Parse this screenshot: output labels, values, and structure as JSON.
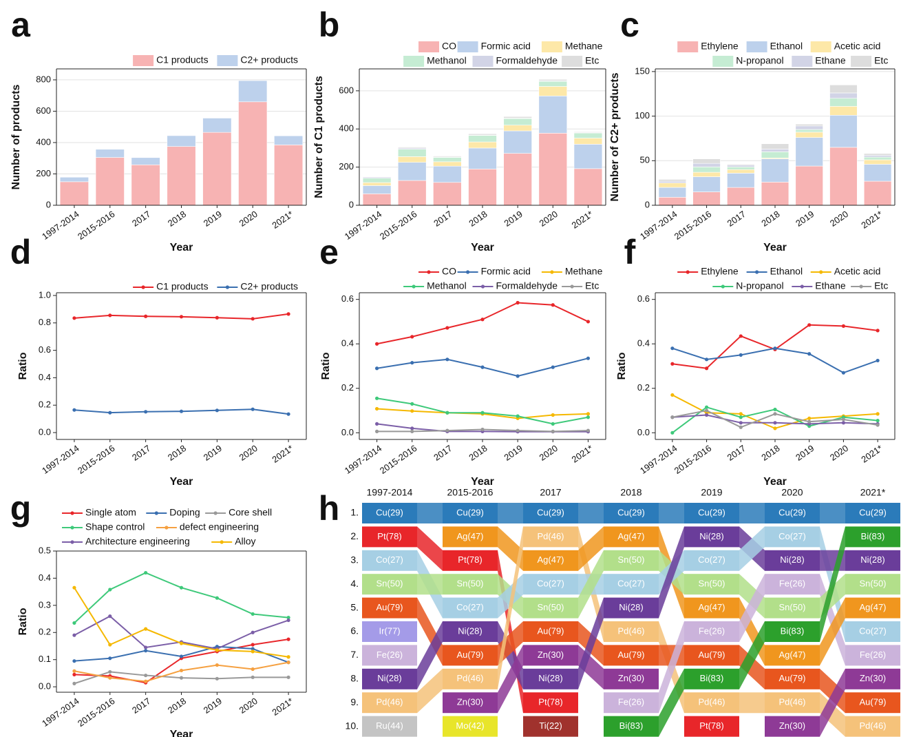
{
  "chart_data": [
    {
      "label": "a",
      "type": "bar",
      "stacked": true,
      "grid": true,
      "legend": "top-right",
      "xlabel": "Year",
      "ylabel": "Number of products",
      "categories": [
        "1997-2014",
        "2015-2016",
        "2017",
        "2018",
        "2019",
        "2020",
        "2021*"
      ],
      "ylim": [
        0,
        870
      ],
      "yticks": [
        0,
        200,
        400,
        600,
        800
      ],
      "series": [
        {
          "name": "C1 products",
          "color": "#f7b3b3",
          "values": [
            150,
            305,
            258,
            375,
            465,
            660,
            385
          ]
        },
        {
          "name": "C2+ products",
          "color": "#bdd1ec",
          "values": [
            29,
            52,
            46,
            69,
            91,
            135,
            58
          ]
        }
      ]
    },
    {
      "label": "b",
      "type": "bar",
      "stacked": true,
      "grid": true,
      "legend": "top-right",
      "xlabel": "Year",
      "ylabel": "Number of C1 products",
      "categories": [
        "1997-2014",
        "2015-2016",
        "2017",
        "2018",
        "2019",
        "2020",
        "2021*"
      ],
      "ylim": [
        0,
        715
      ],
      "yticks": [
        0,
        200,
        400,
        600
      ],
      "series": [
        {
          "name": "CO",
          "color": "#f7b3b3",
          "values": [
            60,
            130,
            120,
            190,
            272,
            378,
            192
          ]
        },
        {
          "name": "Formic acid",
          "color": "#bdd1ec",
          "values": [
            43,
            95,
            85,
            110,
            118,
            195,
            128
          ]
        },
        {
          "name": "Methane",
          "color": "#fde8a8",
          "values": [
            16,
            30,
            23,
            32,
            30,
            50,
            32
          ]
        },
        {
          "name": "Methanol",
          "color": "#c5ecd3",
          "values": [
            23,
            39,
            23,
            34,
            35,
            27,
            27
          ]
        },
        {
          "name": "Formaldehyde",
          "color": "#d2d4e6",
          "values": [
            6,
            6,
            2,
            2,
            2,
            3,
            2
          ]
        },
        {
          "name": "Etc",
          "color": "#dddddd",
          "values": [
            2,
            5,
            5,
            7,
            8,
            7,
            4
          ]
        }
      ]
    },
    {
      "label": "c",
      "type": "bar",
      "stacked": true,
      "grid": true,
      "legend": "top-right",
      "xlabel": "Year",
      "ylabel": "Number of C2+ products",
      "categories": [
        "1997-2014",
        "2015-2016",
        "2017",
        "2018",
        "2019",
        "2020",
        "2021*"
      ],
      "ylim": [
        0,
        153
      ],
      "yticks": [
        0,
        50,
        100,
        150
      ],
      "series": [
        {
          "name": "Ethylene",
          "color": "#f7b3b3",
          "values": [
            9,
            15,
            20,
            26,
            44,
            65,
            27
          ]
        },
        {
          "name": "Ethanol",
          "color": "#bdd1ec",
          "values": [
            11,
            17,
            16,
            26,
            32,
            36,
            19
          ]
        },
        {
          "name": "Acetic acid",
          "color": "#fde8a8",
          "values": [
            5,
            5,
            4,
            1,
            6,
            10,
            5
          ]
        },
        {
          "name": "N-propanol",
          "color": "#c5ecd3",
          "values": [
            0,
            6,
            3,
            7,
            3,
            9,
            3
          ]
        },
        {
          "name": "Ethane",
          "color": "#d2d4e6",
          "values": [
            2,
            4,
            2,
            3,
            4,
            6,
            2
          ]
        },
        {
          "name": "Etc",
          "color": "#dddddd",
          "values": [
            2,
            5,
            1,
            6,
            2,
            9,
            2
          ]
        }
      ]
    },
    {
      "label": "d",
      "type": "line",
      "grid": false,
      "legend": "top-right",
      "xlabel": "Year",
      "ylabel": "Ratio",
      "categories": [
        "1997-2014",
        "2015-2016",
        "2017",
        "2018",
        "2019",
        "2020",
        "2021*"
      ],
      "ylim": [
        -0.05,
        1.02
      ],
      "yticks": [
        {
          "value": 0,
          "label": "0.0"
        },
        0.2,
        0.4,
        0.6,
        0.8,
        {
          "value": 1,
          "label": "1.0"
        }
      ],
      "series": [
        {
          "name": "C1 products",
          "color": "#e8262a",
          "values": [
            0.835,
            0.855,
            0.848,
            0.845,
            0.838,
            0.83,
            0.865
          ]
        },
        {
          "name": "C2+ products",
          "color": "#3a6fb0",
          "values": [
            0.165,
            0.145,
            0.152,
            0.155,
            0.162,
            0.17,
            0.135
          ]
        }
      ]
    },
    {
      "label": "e",
      "type": "line",
      "grid": false,
      "legend": "top-right",
      "xlabel": "Year",
      "ylabel": "Ratio",
      "categories": [
        "1997-2014",
        "2015-2016",
        "2017",
        "2018",
        "2019",
        "2020",
        "2021*"
      ],
      "ylim": [
        -0.03,
        0.63
      ],
      "yticks": [
        {
          "value": 0,
          "label": "0.0"
        },
        0.2,
        0.4,
        0.6
      ],
      "series": [
        {
          "name": "CO",
          "color": "#e8262a",
          "values": [
            0.4,
            0.432,
            0.472,
            0.51,
            0.585,
            0.575,
            0.5
          ]
        },
        {
          "name": "Formic acid",
          "color": "#3a6fb0",
          "values": [
            0.29,
            0.315,
            0.33,
            0.295,
            0.255,
            0.295,
            0.335
          ]
        },
        {
          "name": "Methane",
          "color": "#f5b800",
          "values": [
            0.108,
            0.098,
            0.09,
            0.085,
            0.065,
            0.08,
            0.085
          ]
        },
        {
          "name": "Methanol",
          "color": "#3ec97a",
          "values": [
            0.155,
            0.13,
            0.09,
            0.09,
            0.075,
            0.04,
            0.07
          ]
        },
        {
          "name": "Formaldehyde",
          "color": "#7b5ea7",
          "values": [
            0.04,
            0.02,
            0.006,
            0.006,
            0.005,
            0.005,
            0.005
          ]
        },
        {
          "name": "Etc",
          "color": "#999999",
          "values": [
            0.006,
            0.006,
            0.01,
            0.015,
            0.01,
            0.006,
            0.01
          ]
        }
      ]
    },
    {
      "label": "f",
      "type": "line",
      "grid": false,
      "legend": "top-right",
      "xlabel": "Year",
      "ylabel": "Ratio",
      "categories": [
        "1997-2014",
        "2015-2016",
        "2017",
        "2018",
        "2019",
        "2020",
        "2021*"
      ],
      "ylim": [
        -0.03,
        0.63
      ],
      "yticks": [
        {
          "value": 0,
          "label": "0.0"
        },
        0.2,
        0.4,
        0.6
      ],
      "series": [
        {
          "name": "Ethylene",
          "color": "#e8262a",
          "values": [
            0.31,
            0.29,
            0.435,
            0.375,
            0.485,
            0.48,
            0.46
          ]
        },
        {
          "name": "Ethanol",
          "color": "#3a6fb0",
          "values": [
            0.38,
            0.33,
            0.35,
            0.38,
            0.355,
            0.27,
            0.325
          ]
        },
        {
          "name": "Acetic acid",
          "color": "#f5b800",
          "values": [
            0.17,
            0.09,
            0.085,
            0.02,
            0.065,
            0.075,
            0.085
          ]
        },
        {
          "name": "N-propanol",
          "color": "#3ec97a",
          "values": [
            0,
            0.115,
            0.07,
            0.105,
            0.03,
            0.07,
            0.055
          ]
        },
        {
          "name": "Ethane",
          "color": "#7b5ea7",
          "values": [
            0.07,
            0.08,
            0.045,
            0.045,
            0.04,
            0.045,
            0.04
          ]
        },
        {
          "name": "Etc",
          "color": "#999999",
          "values": [
            0.07,
            0.1,
            0.025,
            0.085,
            0.05,
            0.06,
            0.035
          ]
        }
      ]
    },
    {
      "label": "g",
      "type": "line",
      "grid": false,
      "legend": "top-left",
      "xlabel": "Year",
      "ylabel": "Ratio",
      "categories": [
        "1997-2014",
        "2015-2016",
        "2017",
        "2018",
        "2019",
        "2020",
        "2021*"
      ],
      "ylim": [
        -0.02,
        0.5
      ],
      "yticks": [
        {
          "value": 0,
          "label": "0.0"
        },
        0.1,
        0.2,
        0.3,
        0.4,
        0.5
      ],
      "series": [
        {
          "name": "Single atom",
          "color": "#e8262a",
          "values": [
            0.045,
            0.04,
            0.015,
            0.105,
            0.13,
            0.155,
            0.175
          ]
        },
        {
          "name": "Doping",
          "color": "#3a6fb0",
          "values": [
            0.095,
            0.105,
            0.133,
            0.112,
            0.148,
            0.14,
            0.09
          ]
        },
        {
          "name": "Core shell",
          "color": "#999999",
          "values": [
            0.012,
            0.055,
            0.042,
            0.033,
            0.03,
            0.035,
            0.035
          ]
        },
        {
          "name": "Shape control",
          "color": "#3ec97a",
          "values": [
            0.235,
            0.358,
            0.42,
            0.365,
            0.327,
            0.268,
            0.255
          ]
        },
        {
          "name": "defect engineering",
          "color": "#f5a040",
          "values": [
            0.058,
            0.033,
            0.02,
            0.06,
            0.08,
            0.065,
            0.09
          ]
        },
        {
          "name": "Architecture engineering",
          "color": "#7b5ea7",
          "values": [
            0.19,
            0.26,
            0.145,
            0.165,
            0.14,
            0.2,
            0.245
          ]
        },
        {
          "name": "Alloy",
          "color": "#f5b800",
          "values": [
            0.365,
            0.155,
            0.213,
            0.16,
            0.135,
            0.13,
            0.11
          ]
        }
      ]
    },
    {
      "label": "h",
      "type": "bump",
      "columns": [
        "1997-2014",
        "2015-2016",
        "2017",
        "2018",
        "2019",
        "2020",
        "2021*"
      ],
      "ranks": [
        "1.",
        "2.",
        "3.",
        "4.",
        "5.",
        "6.",
        "7.",
        "8.",
        "9.",
        "10."
      ],
      "cells": [
        [
          "Cu(29)",
          "Pt(78)",
          "Co(27)",
          "Sn(50)",
          "Au(79)",
          "Ir(77)",
          "Fe(26)",
          "Ni(28)",
          "Pd(46)",
          "Ru(44)"
        ],
        [
          "Cu(29)",
          "Ag(47)",
          "Pt(78)",
          "Sn(50)",
          "Co(27)",
          "Ni(28)",
          "Au(79)",
          "Pd(46)",
          "Zn(30)",
          "Mo(42)"
        ],
        [
          "Cu(29)",
          "Pd(46)",
          "Ag(47)",
          "Co(27)",
          "Sn(50)",
          "Au(79)",
          "Zn(30)",
          "Ni(28)",
          "Pt(78)",
          "Ti(22)"
        ],
        [
          "Cu(29)",
          "Ag(47)",
          "Sn(50)",
          "Co(27)",
          "Ni(28)",
          "Pd(46)",
          "Au(79)",
          "Zn(30)",
          "Fe(26)",
          "Bi(83)"
        ],
        [
          "Cu(29)",
          "Ni(28)",
          "Co(27)",
          "Sn(50)",
          "Ag(47)",
          "Fe(26)",
          "Au(79)",
          "Bi(83)",
          "Pd(46)",
          "Pt(78)"
        ],
        [
          "Cu(29)",
          "Co(27)",
          "Ni(28)",
          "Fe(26)",
          "Sn(50)",
          "Bi(83)",
          "Ag(47)",
          "Au(79)",
          "Pd(46)",
          "Zn(30)"
        ],
        [
          "Cu(29)",
          "Bi(83)",
          "Ni(28)",
          "Sn(50)",
          "Ag(47)",
          "Co(27)",
          "Fe(26)",
          "Zn(30)",
          "Au(79)",
          "Pd(46)"
        ]
      ],
      "colors": {
        "Cu(29)": "#2b7bba",
        "Pt(78)": "#e8262a",
        "Co(27)": "#a6cfe4",
        "Sn(50)": "#b2df8a",
        "Au(79)": "#e8561e",
        "Ir(77)": "#a49be8",
        "Fe(26)": "#cbb3db",
        "Ni(28)": "#6a3d9a",
        "Pd(46)": "#f5c27a",
        "Ru(44)": "#c4c4c4",
        "Ag(47)": "#f0961e",
        "Zn(30)": "#8e3a96",
        "Mo(42)": "#e8e52a",
        "Ti(22)": "#a0322d",
        "Bi(83)": "#2ca02c"
      }
    }
  ]
}
